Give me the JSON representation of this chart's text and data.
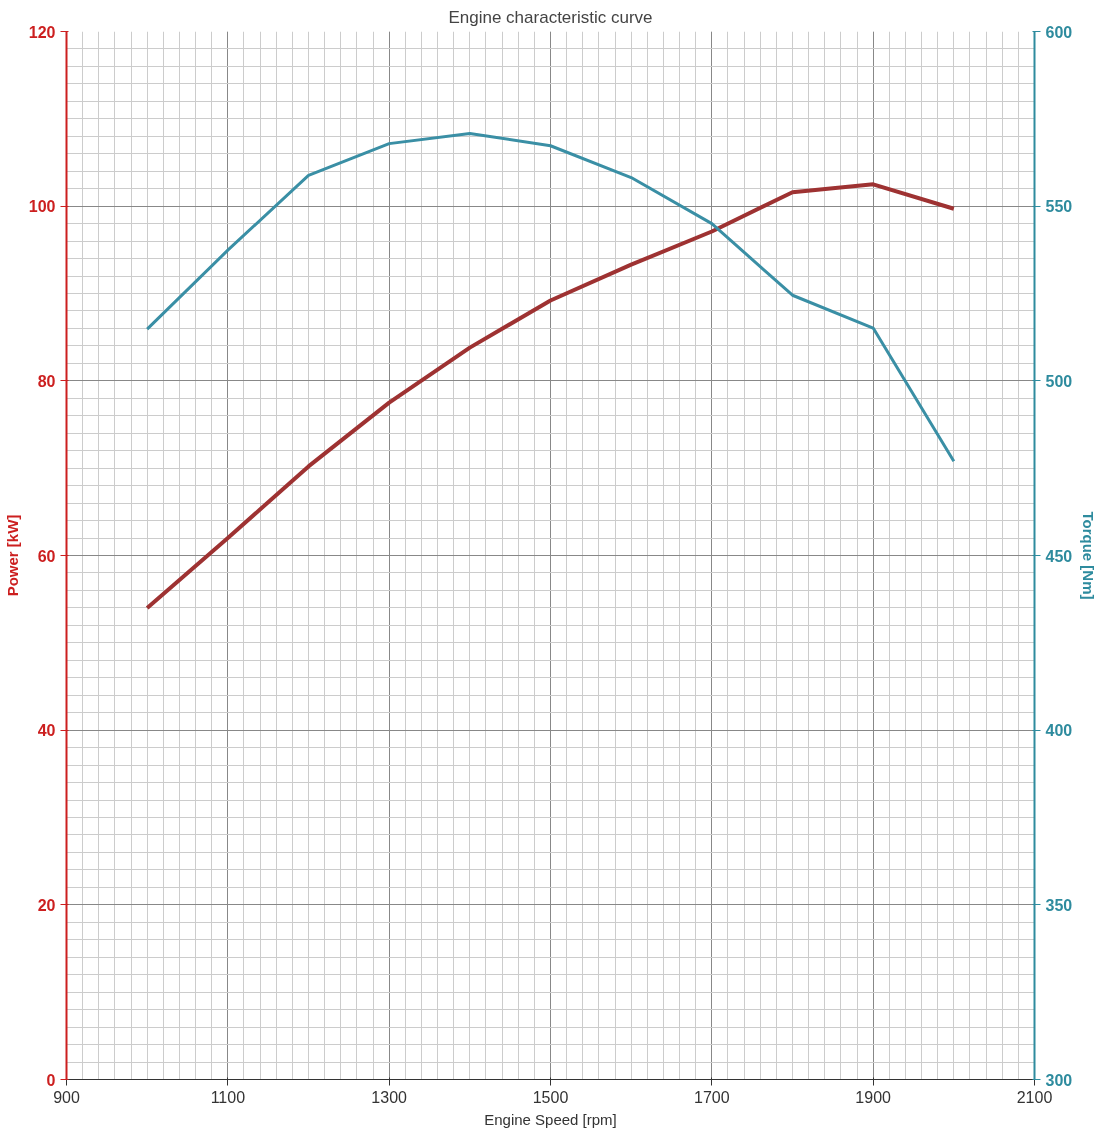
{
  "chart_data": {
    "type": "line",
    "title": "Engine characteristic curve",
    "xlabel": "Engine Speed [rpm]",
    "ylabel": "Power [kW]",
    "y2label": "Torque [Nm]",
    "x": [
      1000,
      1100,
      1200,
      1300,
      1400,
      1500,
      1600,
      1700,
      1800,
      1900,
      2000
    ],
    "series": [
      {
        "color": "#9e3232",
        "values": [
          54.0,
          62.0,
          70.2,
          77.5,
          83.8,
          89.2,
          93.3,
          97.1,
          101.6,
          102.5,
          99.7
        ]
      },
      {
        "color": "#3a8fa5",
        "axis": "y2",
        "values": [
          514.8,
          537.4,
          558.8,
          567.9,
          570.8,
          567.3,
          558.2,
          545.0,
          524.5,
          515.1,
          477.0
        ]
      }
    ],
    "xlim": [
      900,
      2100
    ],
    "xticks": [
      900,
      1100,
      1300,
      1500,
      1700,
      1900,
      2100
    ],
    "ylim": [
      0,
      120
    ],
    "yticks": [
      0,
      20,
      40,
      60,
      80,
      100,
      120
    ],
    "y2lim": [
      300,
      600
    ],
    "y2ticks": [
      300,
      350,
      400,
      450,
      500,
      550,
      600
    ],
    "grid": true,
    "marker": "none",
    "line_style": "solid"
  }
}
